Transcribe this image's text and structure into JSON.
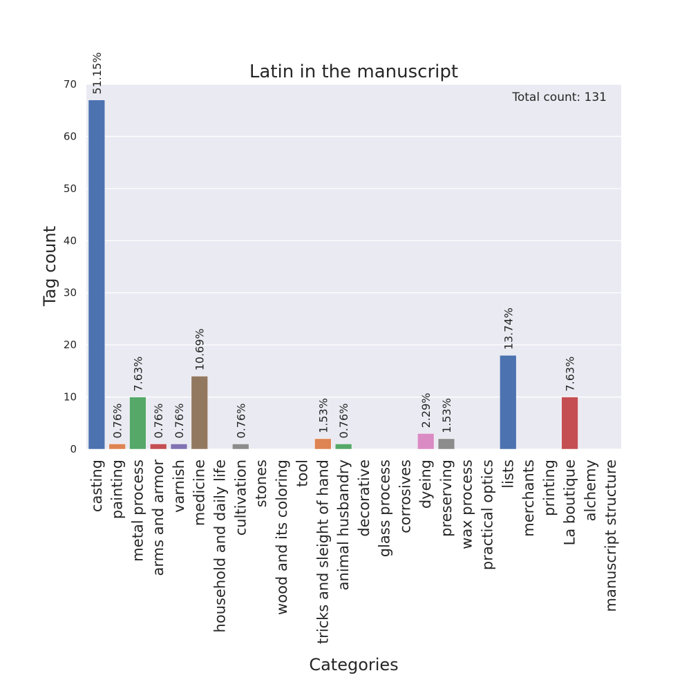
{
  "chart_data": {
    "type": "bar",
    "title": "Latin in the manuscript",
    "xlabel": "Categories",
    "ylabel": "Tag count",
    "ylim": [
      0,
      70
    ],
    "yticks": [
      0,
      10,
      20,
      30,
      40,
      50,
      60,
      70
    ],
    "grid": true,
    "annotation": "Total count: 131",
    "categories": [
      "casting",
      "painting",
      "metal process",
      "arms and armor",
      "varnish",
      "medicine",
      "household and daily life",
      "cultivation",
      "stones",
      "wood and its coloring",
      "tool",
      "tricks and sleight of hand",
      "animal husbandry",
      "decorative",
      "glass process",
      "corrosives",
      "dyeing",
      "preserving",
      "wax process",
      "practical optics",
      "lists",
      "merchants",
      "printing",
      "La boutique",
      "alchemy",
      "manuscript structure"
    ],
    "values": [
      67,
      1,
      10,
      1,
      1,
      14,
      0,
      1,
      0,
      0,
      0,
      2,
      1,
      0,
      0,
      0,
      3,
      2,
      0,
      0,
      18,
      0,
      0,
      10,
      0,
      0
    ],
    "bar_labels": [
      "51.15%",
      "0.76%",
      "7.63%",
      "0.76%",
      "0.76%",
      "10.69%",
      "",
      "0.76%",
      "",
      "",
      "",
      "1.53%",
      "0.76%",
      "",
      "",
      "",
      "2.29%",
      "1.53%",
      "",
      "",
      "13.74%",
      "",
      "",
      "7.63%",
      "",
      ""
    ],
    "colors": [
      "#4c72b0",
      "#dd8452",
      "#55a868",
      "#c44e52",
      "#8172b3",
      "#937860",
      "#da8bc3",
      "#8c8c8c",
      "#ccb974",
      "#64b5cd"
    ],
    "plot_background": "#eaeaf2",
    "grid_color": "#ffffff"
  }
}
